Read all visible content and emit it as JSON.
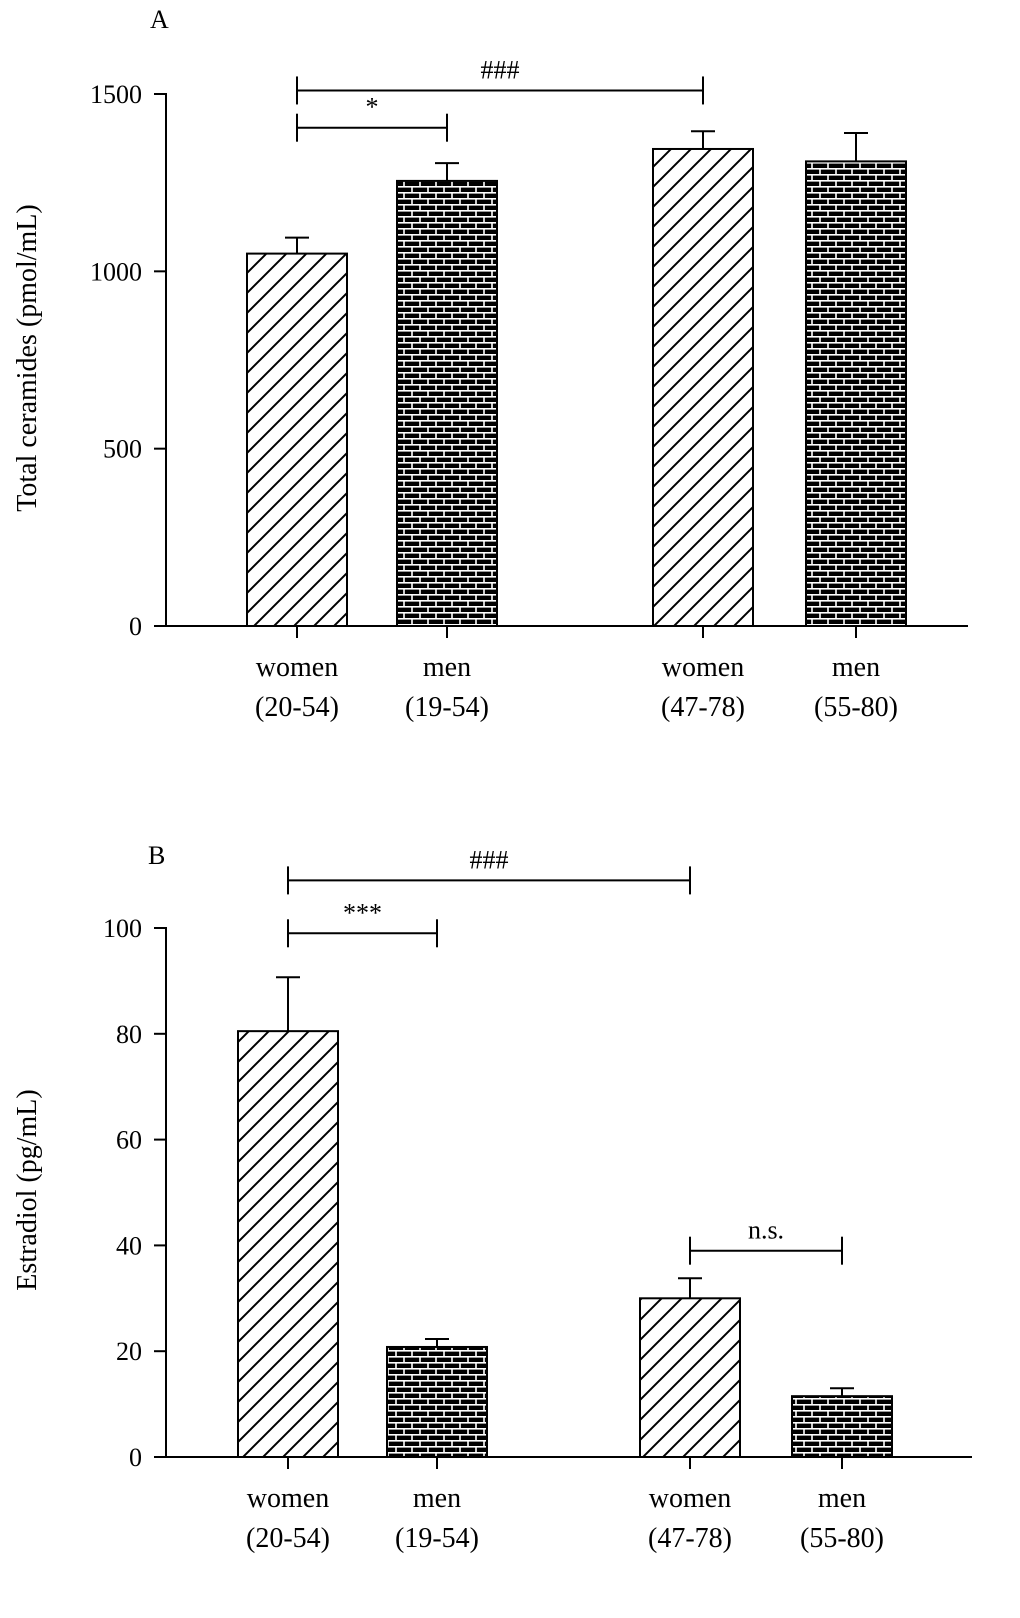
{
  "chart_data": [
    {
      "type": "bar",
      "panel_label": "A",
      "title": "",
      "xlabel": "",
      "ylabel": "Total ceramides (pmol/mL)",
      "ylim": [
        0,
        1500
      ],
      "yticks": [
        0,
        500,
        1000,
        1500
      ],
      "categories": [
        {
          "line1": "women",
          "line2": "(20-54)",
          "pattern": "hatch"
        },
        {
          "line1": "men",
          "line2": "(19-54)",
          "pattern": "brick"
        },
        {
          "line1": "women",
          "line2": "(47-78)",
          "pattern": "hatch"
        },
        {
          "line1": "men",
          "line2": "(55-80)",
          "pattern": "brick"
        }
      ],
      "values": [
        1050,
        1255,
        1345,
        1310
      ],
      "errors": [
        45,
        50,
        50,
        80
      ],
      "annotations": [
        {
          "from": 0,
          "to": 2,
          "label": "###",
          "level": 1510
        },
        {
          "from": 0,
          "to": 1,
          "label": "*",
          "level": 1405
        }
      ]
    },
    {
      "type": "bar",
      "panel_label": "B",
      "title": "",
      "xlabel": "",
      "ylabel": "Estradiol (pg/mL)",
      "ylim": [
        0,
        100
      ],
      "yticks": [
        0,
        20,
        40,
        60,
        80,
        100
      ],
      "categories": [
        {
          "line1": "women",
          "line2": "(20-54)",
          "pattern": "hatch"
        },
        {
          "line1": "men",
          "line2": "(19-54)",
          "pattern": "brick"
        },
        {
          "line1": "women",
          "line2": "(47-78)",
          "pattern": "hatch"
        },
        {
          "line1": "men",
          "line2": "(55-80)",
          "pattern": "brick"
        }
      ],
      "values": [
        80.5,
        20.8,
        30.0,
        11.5
      ],
      "errors": [
        10.2,
        1.5,
        3.8,
        1.5
      ],
      "annotations": [
        {
          "from": 0,
          "to": 2,
          "label": "###",
          "level": 109
        },
        {
          "from": 0,
          "to": 1,
          "label": "***",
          "level": 99
        },
        {
          "from": 2,
          "to": 3,
          "label": "n.s.",
          "level": 39
        }
      ]
    }
  ]
}
